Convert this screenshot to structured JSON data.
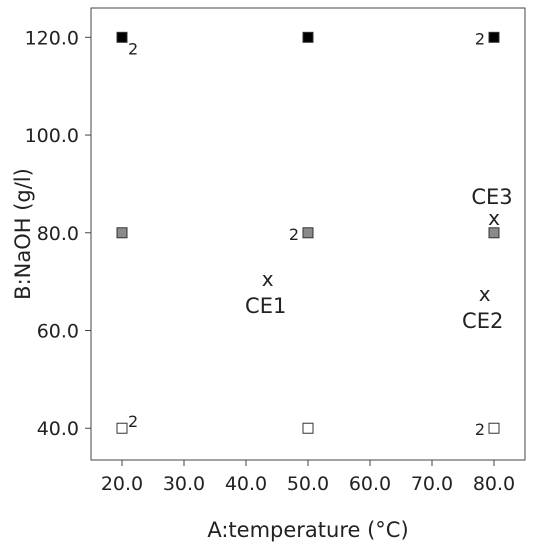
{
  "chart_data": {
    "type": "scatter",
    "xlabel": "A:temperature (°C)",
    "ylabel": "B:NaOH (g/l)",
    "xlim": [
      15,
      85
    ],
    "ylim": [
      33.5,
      126
    ],
    "x_ticks": [
      "20.0",
      "30.0",
      "40.0",
      "50.0",
      "60.0",
      "70.0",
      "80.0"
    ],
    "x_tick_values": [
      20,
      30,
      40,
      50,
      60,
      70,
      80
    ],
    "y_ticks": [
      "40.0",
      "60.0",
      "80.0",
      "100.0",
      "120.0"
    ],
    "y_tick_values": [
      40,
      60,
      80,
      100,
      120
    ],
    "grid": false,
    "design_points": [
      {
        "x": 20,
        "y": 120,
        "replicates": "2",
        "fill": "#000000"
      },
      {
        "x": 50,
        "y": 120,
        "replicates": "",
        "fill": "#000000"
      },
      {
        "x": 80,
        "y": 120,
        "replicates": "2",
        "fill": "#000000"
      },
      {
        "x": 20,
        "y": 80,
        "replicates": "",
        "fill": "#8a8a8a"
      },
      {
        "x": 50,
        "y": 80,
        "replicates": "2",
        "fill": "#8a8a8a"
      },
      {
        "x": 80,
        "y": 80,
        "replicates": "",
        "fill": "#8a8a8a"
      },
      {
        "x": 20,
        "y": 40,
        "replicates": "2",
        "fill": "#ffffff"
      },
      {
        "x": 50,
        "y": 40,
        "replicates": "",
        "fill": "#ffffff"
      },
      {
        "x": 80,
        "y": 40,
        "replicates": "2",
        "fill": "#ffffff"
      }
    ],
    "checkpoints": [
      {
        "x": 43.5,
        "y": 70.5,
        "marker": "x",
        "label": "CE1"
      },
      {
        "x": 78.5,
        "y": 67.5,
        "marker": "x",
        "label": "CE2"
      },
      {
        "x": 80,
        "y": 83,
        "marker": "x",
        "label": "CE3"
      }
    ]
  }
}
